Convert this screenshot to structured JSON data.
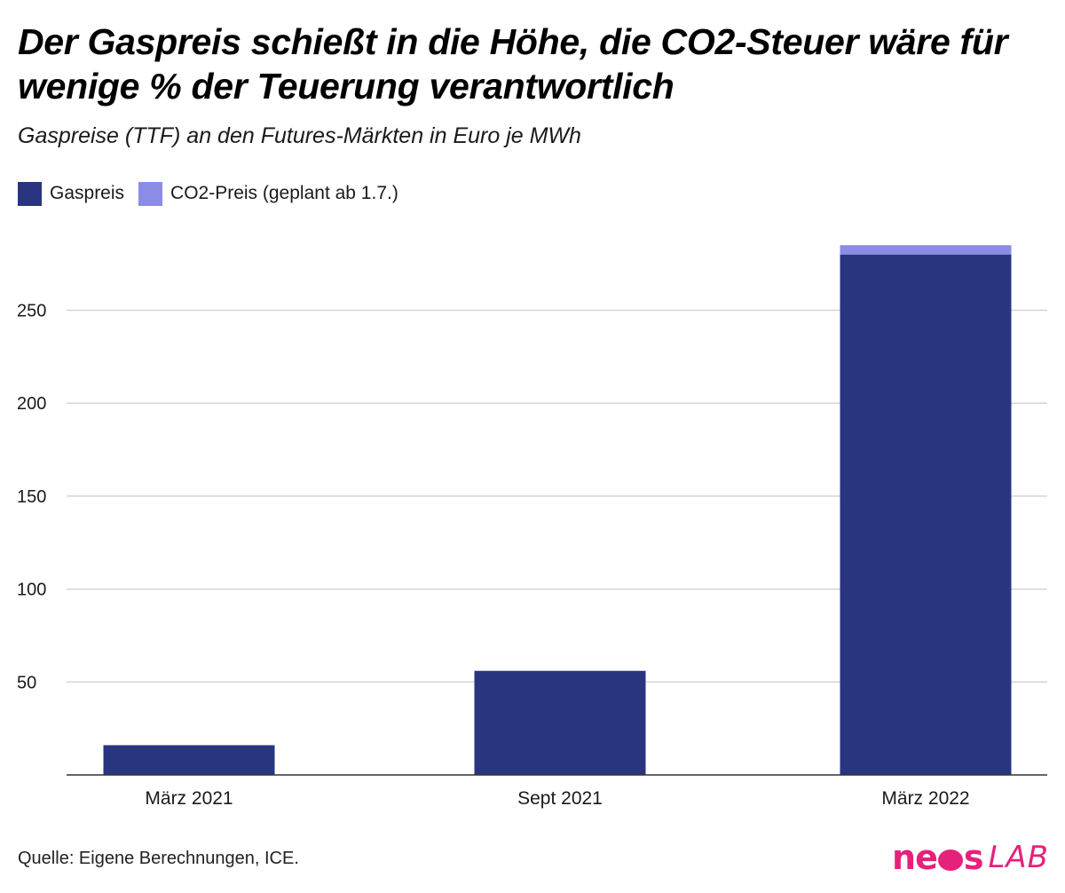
{
  "header": {
    "title": "Der Gaspreis schießt in die Höhe, die CO2-Steuer wäre für wenige % der Teuerung verantwortlich",
    "subtitle": "Gaspreise (TTF) an den Futures-Märkten in Euro je MWh"
  },
  "legend": {
    "items": [
      {
        "label": "Gaspreis",
        "color": "#2a3580"
      },
      {
        "label": "CO2-Preis (geplant ab 1.7.)",
        "color": "#8b8ce6"
      }
    ]
  },
  "chart_data": {
    "type": "bar",
    "stacked": true,
    "title": "Der Gaspreis schießt in die Höhe, die CO2-Steuer wäre für wenige % der Teuerung verantwortlich",
    "subtitle": "Gaspreise (TTF) an den Futures-Märkten in Euro je MWh",
    "xlabel": "",
    "ylabel": "",
    "categories": [
      "März 2021",
      "Sept 2021",
      "März 2022"
    ],
    "series": [
      {
        "name": "Gaspreis",
        "color": "#2a3580",
        "values": [
          16,
          56,
          280
        ]
      },
      {
        "name": "CO2-Preis (geplant ab 1.7.)",
        "color": "#8b8ce6",
        "values": [
          0,
          0,
          5
        ]
      }
    ],
    "ylim": [
      0,
      300
    ],
    "yticks": [
      50,
      100,
      150,
      200,
      250
    ],
    "grid": true,
    "legend_position": "top-left"
  },
  "footer": {
    "source": "Quelle: Eigene Berechnungen, ICE.",
    "logo_primary": "neos",
    "logo_secondary": "LAB",
    "logo_color": "#e6217b"
  }
}
